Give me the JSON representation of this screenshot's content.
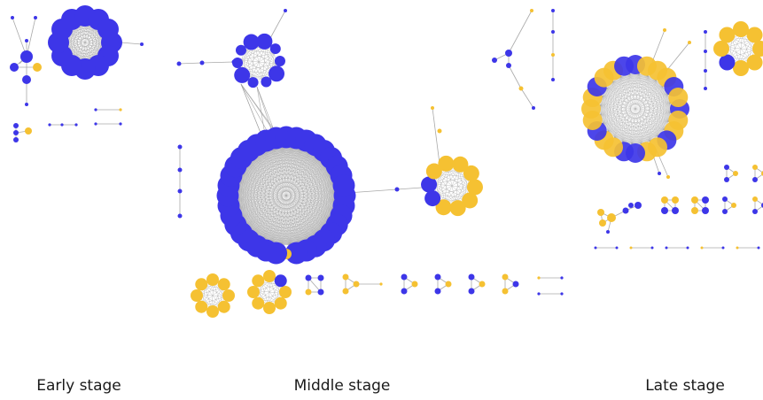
{
  "labels": {
    "early": "Early stage",
    "middle": "Middle stage",
    "late": "Late stage"
  },
  "colors": {
    "blue": "#3d36e8",
    "yellow": "#f5c132",
    "edge": "#9a9a9a"
  }
}
